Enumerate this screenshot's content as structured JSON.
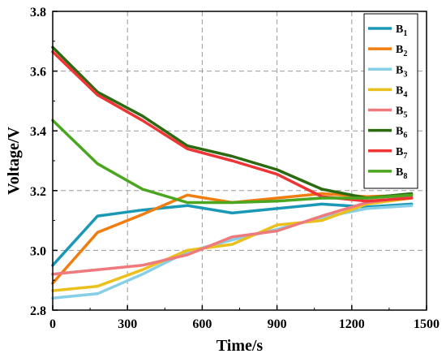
{
  "chart_data": {
    "type": "line",
    "xlabel": "Time/s",
    "ylabel": "Voltage/V",
    "xlim": [
      0,
      1500
    ],
    "ylim": [
      2.8,
      3.8
    ],
    "xticks": [
      0,
      300,
      600,
      900,
      1200,
      1500
    ],
    "yticks": [
      2.8,
      3.0,
      3.2,
      3.4,
      3.6,
      3.8
    ],
    "xtick_labels": [
      "0",
      "300",
      "600",
      "900",
      "1200",
      "1500"
    ],
    "ytick_labels": [
      "2.8",
      "3.0",
      "3.2",
      "3.4",
      "3.6",
      "3.8"
    ],
    "grid": true,
    "legend_position": "top-right",
    "x": [
      0,
      180,
      360,
      540,
      720,
      900,
      1080,
      1260,
      1440
    ],
    "series": [
      {
        "name": "B",
        "sub": "1",
        "color": "#1a98b5",
        "values": [
          2.95,
          3.115,
          3.135,
          3.15,
          3.125,
          3.14,
          3.155,
          3.145,
          3.155
        ]
      },
      {
        "name": "B",
        "sub": "2",
        "color": "#f07d10",
        "values": [
          2.89,
          3.06,
          3.12,
          3.185,
          3.16,
          3.175,
          3.19,
          3.18,
          3.185
        ]
      },
      {
        "name": "B",
        "sub": "3",
        "color": "#86cfe6",
        "values": [
          2.84,
          2.855,
          2.92,
          2.995,
          3.035,
          3.07,
          3.11,
          3.14,
          3.15
        ]
      },
      {
        "name": "B",
        "sub": "4",
        "color": "#ecc01c",
        "values": [
          2.865,
          2.88,
          2.935,
          3.0,
          3.02,
          3.085,
          3.1,
          3.155,
          3.175
        ]
      },
      {
        "name": "B",
        "sub": "5",
        "color": "#ee7a7e",
        "values": [
          2.92,
          2.935,
          2.95,
          2.985,
          3.045,
          3.065,
          3.115,
          3.16,
          3.18
        ]
      },
      {
        "name": "B",
        "sub": "6",
        "color": "#2c6a12",
        "values": [
          3.68,
          3.53,
          3.45,
          3.35,
          3.315,
          3.27,
          3.205,
          3.175,
          3.19
        ]
      },
      {
        "name": "B",
        "sub": "7",
        "color": "#ee3434",
        "values": [
          3.665,
          3.52,
          3.435,
          3.34,
          3.3,
          3.255,
          3.18,
          3.165,
          3.175
        ]
      },
      {
        "name": "B",
        "sub": "8",
        "color": "#4aa51f",
        "values": [
          3.435,
          3.29,
          3.205,
          3.16,
          3.16,
          3.165,
          3.175,
          3.175,
          3.185
        ]
      }
    ]
  }
}
